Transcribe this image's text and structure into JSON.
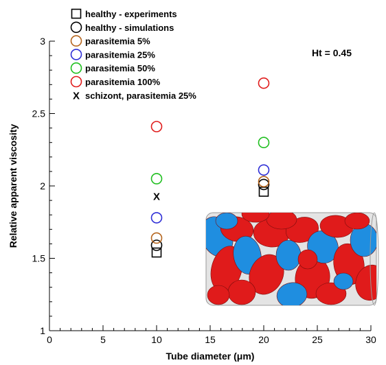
{
  "chart_data": {
    "type": "scatter",
    "title": "",
    "xlabel": "Tube diameter (μm)",
    "ylabel": "Relative apparent viscosity",
    "xlim": [
      0,
      30
    ],
    "ylim": [
      1,
      3
    ],
    "xticks": [
      "0",
      "5",
      "10",
      "15",
      "20",
      "25",
      "30"
    ],
    "yticks": [
      "1",
      "1.5",
      "2",
      "2.5",
      "3"
    ],
    "grid": false,
    "legend_position": "top-left",
    "annotation": "Ht = 0.45",
    "series": [
      {
        "name": "healthy - experiments",
        "marker": "square",
        "color": "#000000",
        "points": [
          {
            "x": 10,
            "y": 1.54
          },
          {
            "x": 20,
            "y": 1.96
          }
        ]
      },
      {
        "name": "healthy - simulations",
        "marker": "circle",
        "color": "#000000",
        "points": [
          {
            "x": 10,
            "y": 1.59
          },
          {
            "x": 20,
            "y": 2.01
          }
        ]
      },
      {
        "name": "parasitemia 5%",
        "marker": "circle",
        "color": "#b5651d",
        "points": [
          {
            "x": 10,
            "y": 1.64
          },
          {
            "x": 20,
            "y": 2.03
          }
        ]
      },
      {
        "name": "parasitemia 25%",
        "marker": "circle",
        "color": "#2e2ed6",
        "points": [
          {
            "x": 10,
            "y": 1.78
          },
          {
            "x": 20,
            "y": 2.11
          }
        ]
      },
      {
        "name": "parasitemia 50%",
        "marker": "circle",
        "color": "#1fbf1f",
        "points": [
          {
            "x": 10,
            "y": 2.05
          },
          {
            "x": 20,
            "y": 2.3
          }
        ]
      },
      {
        "name": "parasitemia 100%",
        "marker": "circle",
        "color": "#e01b1b",
        "points": [
          {
            "x": 10,
            "y": 2.41
          },
          {
            "x": 20,
            "y": 2.71
          }
        ]
      },
      {
        "name": "schizont, parasitemia 25%",
        "marker": "x",
        "color": "#000000",
        "points": [
          {
            "x": 10,
            "y": 1.93
          }
        ]
      }
    ]
  },
  "colors": {
    "axis": "#000000",
    "tube": "#c8c8c8",
    "rbc_healthy": "#e01b1b",
    "rbc_infected": "#1f8ee0"
  }
}
